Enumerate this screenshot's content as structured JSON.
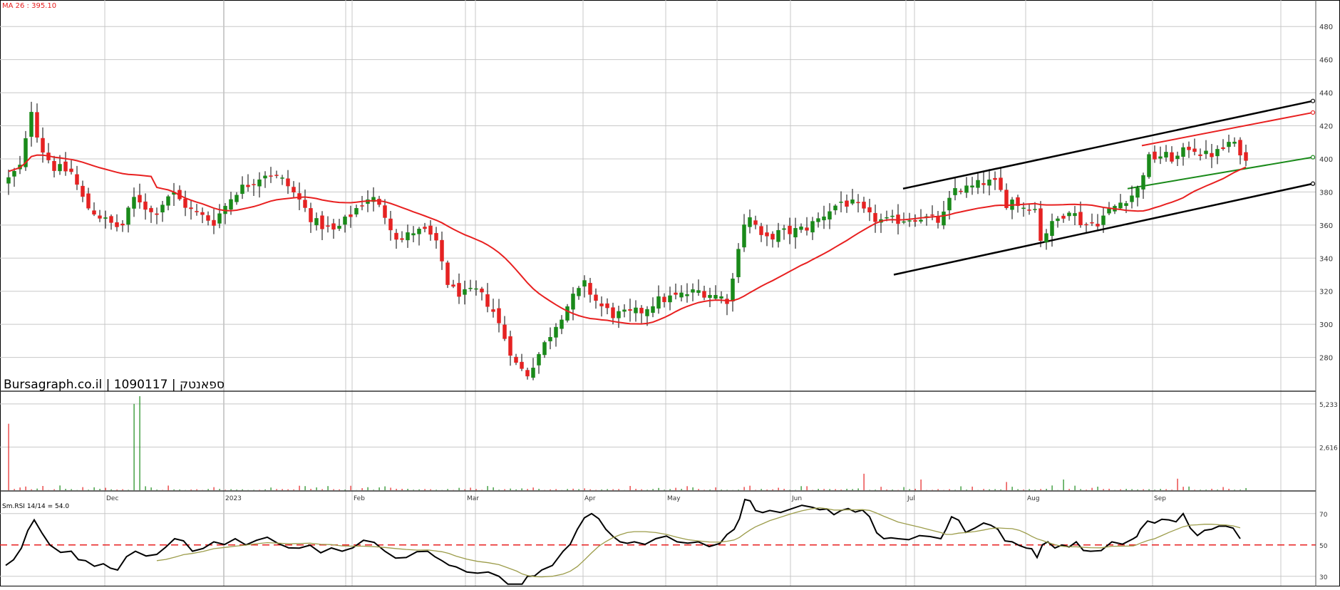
{
  "header": {
    "ma_label": "MA 26 : 395.10",
    "brand": "Bursagraph.co.il | 1090117 | ספאנטק",
    "rsi_label": "Sm.RSI 14/14 = 54.0"
  },
  "colors": {
    "up": "#1a8a1a",
    "down": "#e52222",
    "ma": "#e82020",
    "rsi": "#000000",
    "rsi_signal": "#9c9c4a",
    "channel": "#000000",
    "inner_upper": "#e82020",
    "inner_lower": "#1a8a1a",
    "grid": "#c8c8c8",
    "rsi_mid": "#e82020"
  },
  "chart_data": [
    {
      "type": "candlestick",
      "name": "price",
      "x_labels": [
        "Dec",
        "2023",
        "Feb",
        "Mar",
        "Apr",
        "May",
        "Jun",
        "Jul",
        "Aug",
        "Sep"
      ],
      "ylim": [
        260,
        490
      ],
      "yticks": [
        280,
        300,
        320,
        340,
        360,
        380,
        400,
        420,
        440,
        460,
        480
      ],
      "ma": {
        "label": "MA 26 : 395.10",
        "last": 395.1
      },
      "grid": true
    },
    {
      "type": "bar",
      "name": "volume",
      "yticks": [
        "2,616",
        "5,233"
      ],
      "ylim": [
        0,
        5700
      ]
    },
    {
      "type": "line",
      "name": "rsi",
      "label": "Sm.RSI 14/14 = 54.0",
      "ylim": [
        24,
        84
      ],
      "yticks": [
        30,
        50,
        70
      ],
      "reference": 50
    }
  ]
}
